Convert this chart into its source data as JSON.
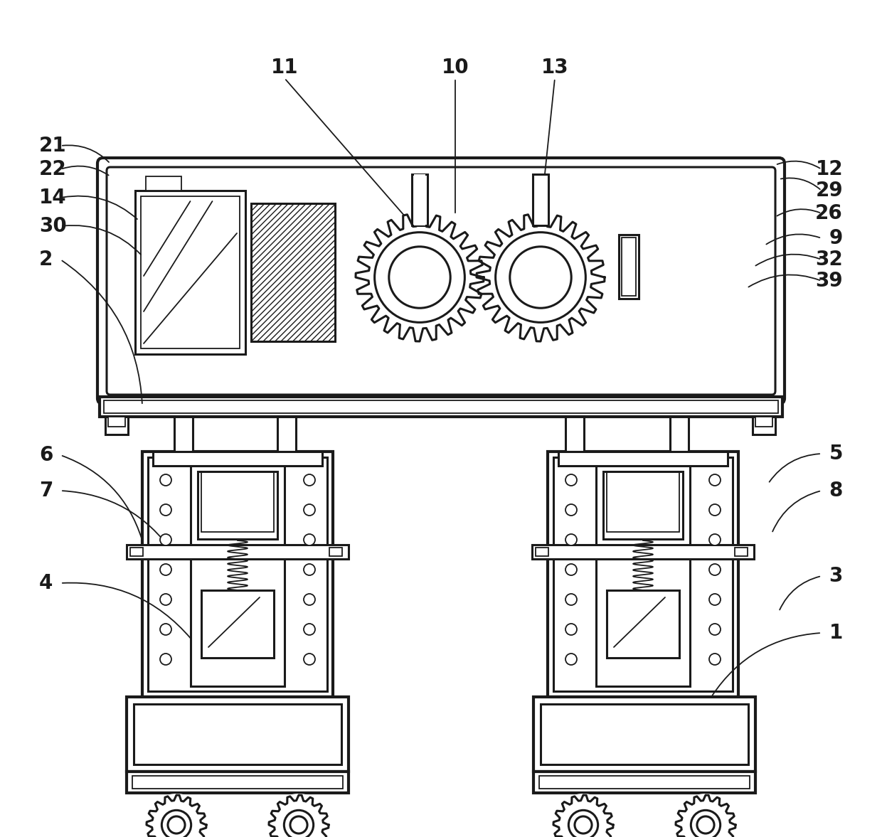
{
  "bg_color": "#ffffff",
  "line_color": "#1a1a1a",
  "label_fontsize": 20,
  "lw": 2.2,
  "lw_thin": 1.3,
  "lw_thick": 3.0
}
